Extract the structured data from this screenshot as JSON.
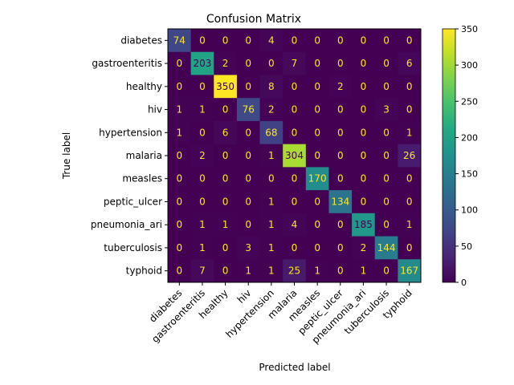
{
  "chart_data": {
    "type": "heatmap",
    "title": "Confusion Matrix",
    "xlabel": "Predicted label",
    "ylabel": "True label",
    "row_labels": [
      "diabetes",
      "gastroenteritis",
      "healthy",
      "hiv",
      "hypertension",
      "malaria",
      "measles",
      "peptic_ulcer",
      "pneumonia_ari",
      "tuberculosis",
      "typhoid"
    ],
    "col_labels": [
      "diabetes",
      "gastroenteritis",
      "healthy",
      "hiv",
      "hypertension",
      "malaria",
      "measles",
      "peptic_ulcer",
      "pneumonia_ari",
      "tuberculosis",
      "typhoid"
    ],
    "values": [
      [
        74,
        0,
        0,
        0,
        4,
        0,
        0,
        0,
        0,
        0,
        0
      ],
      [
        0,
        203,
        2,
        0,
        0,
        7,
        0,
        0,
        0,
        0,
        6
      ],
      [
        0,
        0,
        350,
        0,
        8,
        0,
        0,
        2,
        0,
        0,
        0
      ],
      [
        1,
        1,
        0,
        76,
        2,
        0,
        0,
        0,
        0,
        3,
        0
      ],
      [
        1,
        0,
        6,
        0,
        68,
        0,
        0,
        0,
        0,
        0,
        1
      ],
      [
        0,
        2,
        0,
        0,
        1,
        304,
        0,
        0,
        0,
        0,
        26
      ],
      [
        0,
        0,
        0,
        0,
        0,
        0,
        170,
        0,
        0,
        0,
        0
      ],
      [
        0,
        0,
        0,
        0,
        1,
        0,
        0,
        134,
        0,
        0,
        0
      ],
      [
        0,
        1,
        1,
        0,
        1,
        4,
        0,
        0,
        185,
        0,
        1
      ],
      [
        0,
        1,
        0,
        3,
        1,
        0,
        0,
        0,
        2,
        144,
        0
      ],
      [
        0,
        7,
        0,
        1,
        1,
        25,
        1,
        0,
        1,
        0,
        167
      ]
    ],
    "colormap": "viridis",
    "colorbar": {
      "range": [
        0,
        350
      ],
      "ticks": [
        0,
        50,
        100,
        150,
        200,
        250,
        300,
        350
      ]
    },
    "cell_text_colors": {
      "light": "#fde725",
      "dark": "#440154"
    },
    "grid": false
  }
}
